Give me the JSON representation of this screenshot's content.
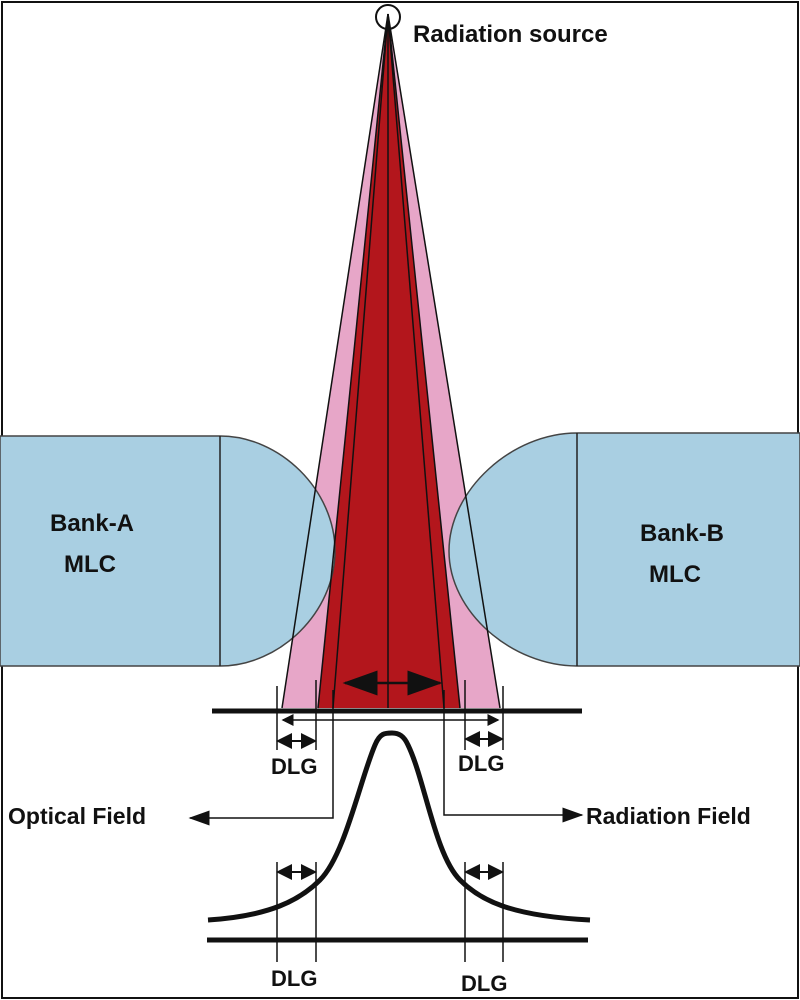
{
  "labels": {
    "source": "Radiation source",
    "bank_a_line1": "Bank-A",
    "bank_a_line2": "MLC",
    "bank_b_line1": "Bank-B",
    "bank_b_line2": "MLC",
    "dlg": "DLG",
    "optical_field": "Optical Field",
    "radiation_field": "Radiation Field"
  },
  "colors": {
    "mlc_fill": "#a9cfe2",
    "beam_red": "#b3161c",
    "beam_red_dark": "#8e1014",
    "penumbra_pink": "#e7a6c8",
    "line": "#111111"
  }
}
